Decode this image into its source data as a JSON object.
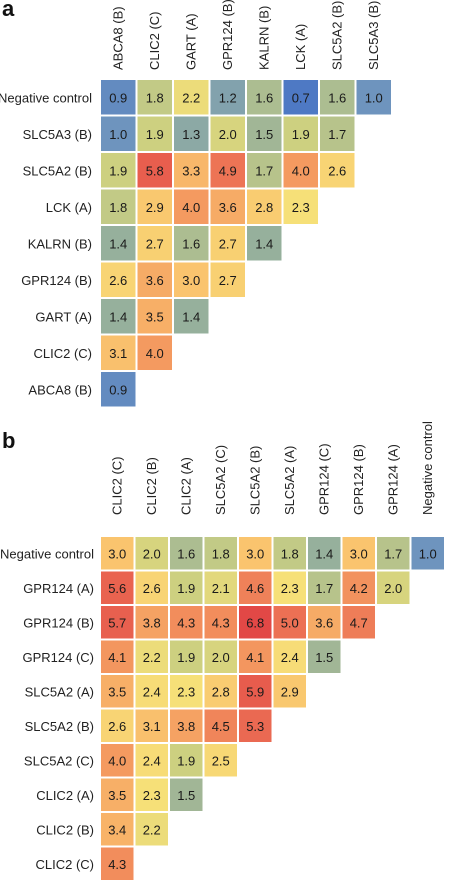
{
  "chart_data": [
    {
      "panel": "a",
      "type": "heatmap",
      "columns": [
        "ABCA8 (B)",
        "CLIC2 (C)",
        "GART (A)",
        "GPR124 (B)",
        "KALRN (B)",
        "LCK (A)",
        "SLC5A2 (B)",
        "SLC5A3 (B)"
      ],
      "rows": [
        "Negative control",
        "SLC5A3 (B)",
        "SLC5A2 (B)",
        "LCK (A)",
        "KALRN (B)",
        "GPR124 (B)",
        "GART (A)",
        "CLIC2 (C)",
        "ABCA8 (B)"
      ],
      "values": [
        [
          "0.9",
          "1.8",
          "2.2",
          "1.2",
          "1.6",
          "0.7",
          "1.6",
          "1.0"
        ],
        [
          "1.0",
          "1.9",
          "1.3",
          "2.0",
          "1.5",
          "1.9",
          "1.7"
        ],
        [
          "1.9",
          "5.8",
          "3.3",
          "4.9",
          "1.7",
          "4.0",
          "2.6"
        ],
        [
          "1.8",
          "2.9",
          "4.0",
          "3.6",
          "2.8",
          "2.3"
        ],
        [
          "1.4",
          "2.7",
          "1.6",
          "2.7",
          "1.4"
        ],
        [
          "2.6",
          "3.6",
          "3.0",
          "2.7"
        ],
        [
          "1.4",
          "3.5",
          "1.4"
        ],
        [
          "3.1",
          "4.0"
        ],
        [
          "0.9"
        ]
      ]
    },
    {
      "panel": "b",
      "type": "heatmap",
      "columns": [
        "CLIC2 (C)",
        "CLIC2 (B)",
        "CLIC2 (A)",
        "SLC5A2 (C)",
        "SLC5A2 (B)",
        "SLC5A2 (A)",
        "GPR124 (C)",
        "GPR124 (B)",
        "GPR124 (A)",
        "Negative control"
      ],
      "rows": [
        "Negative control",
        "GPR124 (A)",
        "GPR124 (B)",
        "GPR124 (C)",
        "SLC5A2 (A)",
        "SLC5A2 (B)",
        "SLC5A2 (C)",
        "CLIC2 (A)",
        "CLIC2 (B)",
        "CLIC2 (C)"
      ],
      "values": [
        [
          "3.0",
          "2.0",
          "1.6",
          "1.8",
          "3.0",
          "1.8",
          "1.4",
          "3.0",
          "1.7",
          "1.0"
        ],
        [
          "5.6",
          "2.6",
          "1.9",
          "2.1",
          "4.6",
          "2.3",
          "1.7",
          "4.2",
          "2.0"
        ],
        [
          "5.7",
          "3.8",
          "4.3",
          "4.3",
          "6.8",
          "5.0",
          "3.6",
          "4.7"
        ],
        [
          "4.1",
          "2.2",
          "1.9",
          "2.0",
          "4.1",
          "2.4",
          "1.5"
        ],
        [
          "3.5",
          "2.4",
          "2.3",
          "2.8",
          "5.9",
          "2.9"
        ],
        [
          "2.6",
          "3.1",
          "3.8",
          "4.5",
          "5.3"
        ],
        [
          "4.0",
          "2.4",
          "1.9",
          "2.5"
        ],
        [
          "3.5",
          "2.3",
          "1.5"
        ],
        [
          "3.4",
          "2.2"
        ],
        [
          "4.3"
        ]
      ]
    }
  ],
  "panels": {
    "a": {
      "letter": "a"
    },
    "b": {
      "letter": "b"
    }
  }
}
